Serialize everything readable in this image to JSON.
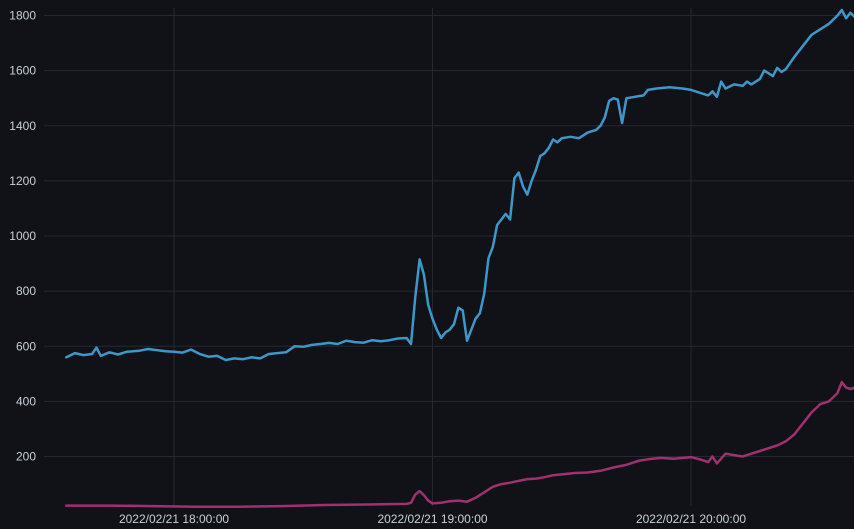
{
  "colors": {
    "background": "#111217",
    "grid": "#262830",
    "tick_text": "#c7d0d9",
    "series_blue": "#3d97c8",
    "series_magenta": "#a1306f"
  },
  "chart_data": {
    "type": "line",
    "title": "",
    "xlabel": "",
    "ylabel": "",
    "grid": true,
    "legend": "none",
    "x_range": [
      "2022/02/21 17:35:00",
      "2022/02/21 20:40:00"
    ],
    "ylim": [
      0,
      1820
    ],
    "y_ticks": [
      200,
      400,
      600,
      800,
      1000,
      1200,
      1400,
      1600,
      1800
    ],
    "x_ticks": [
      {
        "label": "2022/02/21 18:00:00",
        "value": "2022/02/21 18:00:00"
      },
      {
        "label": "2022/02/21 19:00:00",
        "value": "2022/02/21 19:00:00"
      },
      {
        "label": "2022/02/21 20:00:00",
        "value": "2022/02/21 20:00:00"
      }
    ],
    "series": [
      {
        "color": "#3d97c8",
        "points": [
          [
            "17:35",
            560
          ],
          [
            "17:37",
            575
          ],
          [
            "17:39",
            568
          ],
          [
            "17:41",
            572
          ],
          [
            "17:42",
            595
          ],
          [
            "17:43",
            565
          ],
          [
            "17:45",
            578
          ],
          [
            "17:47",
            570
          ],
          [
            "17:49",
            580
          ],
          [
            "17:52",
            584
          ],
          [
            "17:54",
            590
          ],
          [
            "17:56",
            586
          ],
          [
            "17:58",
            582
          ],
          [
            "18:00",
            580
          ],
          [
            "18:02",
            577
          ],
          [
            "18:04",
            588
          ],
          [
            "18:06",
            572
          ],
          [
            "18:08",
            562
          ],
          [
            "18:10",
            565
          ],
          [
            "18:12",
            550
          ],
          [
            "18:14",
            556
          ],
          [
            "18:16",
            553
          ],
          [
            "18:18",
            560
          ],
          [
            "18:20",
            556
          ],
          [
            "18:22",
            572
          ],
          [
            "18:24",
            575
          ],
          [
            "18:26",
            578
          ],
          [
            "18:28",
            600
          ],
          [
            "18:30",
            598
          ],
          [
            "18:32",
            605
          ],
          [
            "18:34",
            608
          ],
          [
            "18:36",
            612
          ],
          [
            "18:38",
            608
          ],
          [
            "18:40",
            620
          ],
          [
            "18:42",
            615
          ],
          [
            "18:44",
            613
          ],
          [
            "18:46",
            622
          ],
          [
            "18:48",
            618
          ],
          [
            "18:50",
            622
          ],
          [
            "18:52",
            628
          ],
          [
            "18:54",
            630
          ],
          [
            "18:55",
            608
          ],
          [
            "18:56",
            780
          ],
          [
            "18:57",
            915
          ],
          [
            "18:58",
            860
          ],
          [
            "18:59",
            750
          ],
          [
            "19:00",
            700
          ],
          [
            "19:01",
            660
          ],
          [
            "19:02",
            630
          ],
          [
            "19:03",
            650
          ],
          [
            "19:04",
            660
          ],
          [
            "19:05",
            680
          ],
          [
            "19:06",
            740
          ],
          [
            "19:07",
            730
          ],
          [
            "19:08",
            620
          ],
          [
            "19:09",
            660
          ],
          [
            "19:10",
            700
          ],
          [
            "19:11",
            720
          ],
          [
            "19:12",
            790
          ],
          [
            "19:13",
            920
          ],
          [
            "19:14",
            960
          ],
          [
            "19:15",
            1040
          ],
          [
            "19:16",
            1060
          ],
          [
            "19:17",
            1080
          ],
          [
            "19:18",
            1060
          ],
          [
            "19:19",
            1210
          ],
          [
            "19:20",
            1230
          ],
          [
            "19:21",
            1180
          ],
          [
            "19:22",
            1150
          ],
          [
            "19:23",
            1200
          ],
          [
            "19:24",
            1240
          ],
          [
            "19:25",
            1290
          ],
          [
            "19:26",
            1300
          ],
          [
            "19:27",
            1320
          ],
          [
            "19:28",
            1350
          ],
          [
            "19:29",
            1340
          ],
          [
            "19:30",
            1355
          ],
          [
            "19:32",
            1360
          ],
          [
            "19:34",
            1355
          ],
          [
            "19:36",
            1375
          ],
          [
            "19:38",
            1385
          ],
          [
            "19:39",
            1400
          ],
          [
            "19:40",
            1430
          ],
          [
            "19:41",
            1490
          ],
          [
            "19:42",
            1500
          ],
          [
            "19:43",
            1495
          ],
          [
            "19:44",
            1410
          ],
          [
            "19:45",
            1500
          ],
          [
            "19:47",
            1505
          ],
          [
            "19:49",
            1510
          ],
          [
            "19:50",
            1530
          ],
          [
            "19:52",
            1535
          ],
          [
            "19:55",
            1540
          ],
          [
            "19:58",
            1535
          ],
          [
            "20:00",
            1530
          ],
          [
            "20:02",
            1520
          ],
          [
            "20:04",
            1510
          ],
          [
            "20:05",
            1525
          ],
          [
            "20:06",
            1505
          ],
          [
            "20:07",
            1560
          ],
          [
            "20:08",
            1535
          ],
          [
            "20:10",
            1550
          ],
          [
            "20:12",
            1545
          ],
          [
            "20:13",
            1560
          ],
          [
            "20:14",
            1550
          ],
          [
            "20:16",
            1570
          ],
          [
            "20:17",
            1600
          ],
          [
            "20:19",
            1580
          ],
          [
            "20:20",
            1610
          ],
          [
            "20:21",
            1595
          ],
          [
            "20:22",
            1605
          ],
          [
            "20:24",
            1650
          ],
          [
            "20:26",
            1690
          ],
          [
            "20:28",
            1730
          ],
          [
            "20:30",
            1750
          ],
          [
            "20:32",
            1770
          ],
          [
            "20:34",
            1800
          ],
          [
            "20:35",
            1820
          ],
          [
            "20:36",
            1790
          ],
          [
            "20:37",
            1810
          ],
          [
            "20:38",
            1795
          ],
          [
            "20:39",
            1805
          ],
          [
            "20:40",
            1790
          ]
        ]
      },
      {
        "color": "#a1306f",
        "points": [
          [
            "17:35",
            22
          ],
          [
            "17:45",
            22
          ],
          [
            "17:55",
            20
          ],
          [
            "18:05",
            18
          ],
          [
            "18:15",
            18
          ],
          [
            "18:25",
            20
          ],
          [
            "18:35",
            24
          ],
          [
            "18:45",
            26
          ],
          [
            "18:54",
            28
          ],
          [
            "18:55",
            32
          ],
          [
            "18:56",
            62
          ],
          [
            "18:57",
            75
          ],
          [
            "18:58",
            60
          ],
          [
            "18:59",
            40
          ],
          [
            "19:00",
            30
          ],
          [
            "19:02",
            32
          ],
          [
            "19:04",
            38
          ],
          [
            "19:06",
            40
          ],
          [
            "19:08",
            36
          ],
          [
            "19:10",
            50
          ],
          [
            "19:12",
            70
          ],
          [
            "19:14",
            90
          ],
          [
            "19:16",
            100
          ],
          [
            "19:18",
            105
          ],
          [
            "19:20",
            112
          ],
          [
            "19:22",
            118
          ],
          [
            "19:24",
            120
          ],
          [
            "19:26",
            125
          ],
          [
            "19:28",
            132
          ],
          [
            "19:30",
            135
          ],
          [
            "19:33",
            140
          ],
          [
            "19:36",
            142
          ],
          [
            "19:39",
            148
          ],
          [
            "19:42",
            160
          ],
          [
            "19:45",
            170
          ],
          [
            "19:48",
            185
          ],
          [
            "19:50",
            190
          ],
          [
            "19:53",
            195
          ],
          [
            "19:56",
            192
          ],
          [
            "20:00",
            198
          ],
          [
            "20:02",
            190
          ],
          [
            "20:04",
            180
          ],
          [
            "20:05",
            200
          ],
          [
            "20:06",
            175
          ],
          [
            "20:08",
            210
          ],
          [
            "20:10",
            205
          ],
          [
            "20:12",
            200
          ],
          [
            "20:14",
            210
          ],
          [
            "20:16",
            220
          ],
          [
            "20:18",
            230
          ],
          [
            "20:20",
            240
          ],
          [
            "20:22",
            255
          ],
          [
            "20:24",
            280
          ],
          [
            "20:26",
            320
          ],
          [
            "20:28",
            360
          ],
          [
            "20:30",
            390
          ],
          [
            "20:32",
            400
          ],
          [
            "20:34",
            430
          ],
          [
            "20:35",
            470
          ],
          [
            "20:36",
            450
          ],
          [
            "20:37",
            445
          ],
          [
            "20:38",
            450
          ],
          [
            "20:40",
            440
          ]
        ]
      }
    ]
  }
}
